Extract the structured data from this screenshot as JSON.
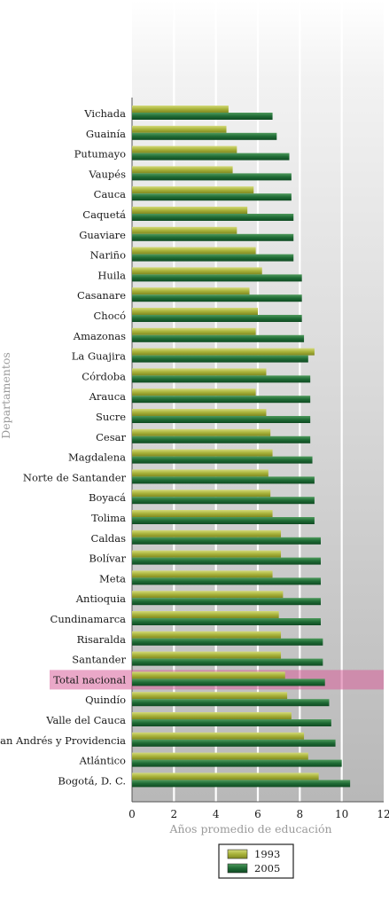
{
  "chart_data": {
    "type": "bar",
    "orientation": "horizontal",
    "xlabel": "Años promedio de educación",
    "ylabel": "Departamentos",
    "xlim": [
      0,
      12
    ],
    "xticks": [
      "0",
      "2",
      "4",
      "6",
      "8",
      "10",
      "12"
    ],
    "grid": true,
    "legend_position": "bottom",
    "highlight_category": "Total nacional",
    "highlight_color": "#d9609a",
    "categories": [
      "Vichada",
      "Guainía",
      "Putumayo",
      "Vaupés",
      "Cauca",
      "Caquetá",
      "Guaviare",
      "Nariño",
      "Huila",
      "Casanare",
      "Chocó",
      "Amazonas",
      "La Guajira",
      "Córdoba",
      "Arauca",
      "Sucre",
      "Cesar",
      "Magdalena",
      "Norte de Santander",
      "Boyacá",
      "Tolima",
      "Caldas",
      "Bolívar",
      "Meta",
      "Antioquia",
      "Cundinamarca",
      "Risaralda",
      "Santander",
      "Total nacional",
      "Quindío",
      "Valle del Cauca",
      "San Andrés y Providencia",
      "Atlántico",
      "Bogotá, D. C."
    ],
    "series": [
      {
        "name": "1993",
        "color": "#a8b23a",
        "values": [
          4.6,
          4.5,
          5.0,
          4.8,
          5.8,
          5.5,
          5.0,
          5.9,
          6.2,
          5.6,
          6.0,
          5.9,
          8.7,
          6.4,
          5.9,
          6.4,
          6.6,
          6.7,
          6.5,
          6.6,
          6.7,
          7.1,
          7.1,
          6.7,
          7.2,
          7.0,
          7.1,
          7.1,
          7.3,
          7.4,
          7.6,
          8.2,
          8.4,
          8.9
        ]
      },
      {
        "name": "2005",
        "color": "#1f6b35",
        "values": [
          6.7,
          6.9,
          7.5,
          7.6,
          7.6,
          7.7,
          7.7,
          7.7,
          8.1,
          8.1,
          8.1,
          8.2,
          8.4,
          8.5,
          8.5,
          8.5,
          8.5,
          8.6,
          8.7,
          8.7,
          8.7,
          9.0,
          9.0,
          9.0,
          9.0,
          9.0,
          9.1,
          9.1,
          9.2,
          9.4,
          9.5,
          9.7,
          10.0,
          10.4
        ]
      }
    ]
  }
}
